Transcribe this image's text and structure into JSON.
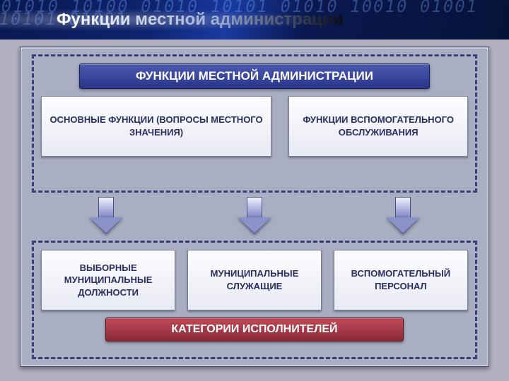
{
  "slide": {
    "title": "Функции местной администрации",
    "title_fontsize": 24,
    "hero_digits": "01010 10100 01010\n10101 01010 10010\n01001 10101 01001"
  },
  "diagram": {
    "type": "flowchart",
    "background_color": "#a9aec2",
    "dashed_border_color": "#3a3f7a",
    "box_bg_gradient": [
      "#fdfdff",
      "#e8eaf4"
    ],
    "box_text_color": "#2a2e60",
    "box_fontsize": 13,
    "arrow_gradient": [
      "#f0f2ff",
      "#5a62a0"
    ],
    "top_group": {
      "header": {
        "text": "ФУНКЦИИ МЕСТНОЙ АДМИНИСТРАЦИИ",
        "bg_gradient": [
          "#4a5ab0",
          "#2a358a"
        ],
        "text_color": "#ffffff",
        "fontsize": 17
      },
      "boxes": [
        {
          "text": "ОСНОВНЫЕ ФУНКЦИИ (ВОПРОСЫ МЕСТНОГО ЗНАЧЕНИЯ)"
        },
        {
          "text": "ФУНКЦИИ ВСПОМОГАТЕЛЬНОГО ОБСЛУЖИВАНИЯ"
        }
      ]
    },
    "arrows": {
      "count": 3,
      "direction": "down"
    },
    "bottom_group": {
      "header": {
        "text": "КАТЕГОРИИ ИСПОЛНИТЕЛЕЙ",
        "bg_gradient": [
          "#c04a5a",
          "#8a2a35"
        ],
        "text_color": "#ffffff",
        "fontsize": 16
      },
      "boxes": [
        {
          "text": "ВЫБОРНЫЕ МУНИЦИПАЛЬНЫЕ ДОЛЖНОСТИ"
        },
        {
          "text": "МУНИЦИПАЛЬНЫЕ СЛУЖАЩИЕ"
        },
        {
          "text": "ВСПОМОГАТЕЛЬНЫЙ ПЕРСОНАЛ"
        }
      ]
    }
  }
}
